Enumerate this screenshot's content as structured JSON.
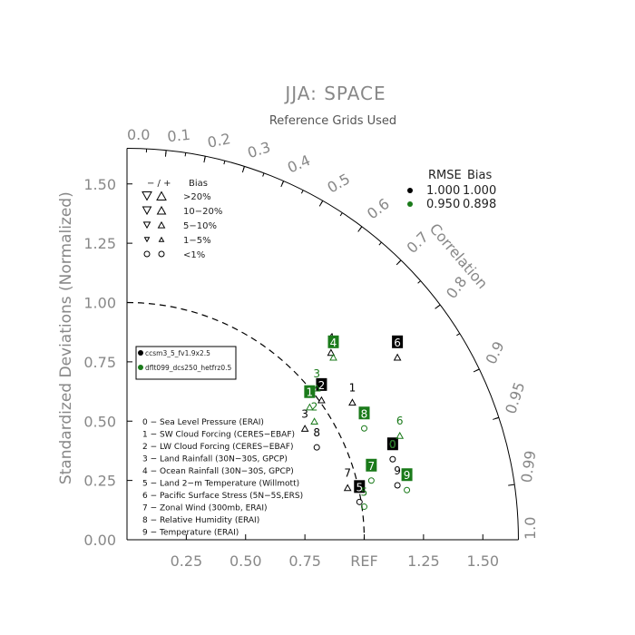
{
  "chart_data": {
    "type": "taylor",
    "title": "JJA: SPACE",
    "subtitle": "Reference Grids Used",
    "ylabel": "Standardized Deviations (Normalized)",
    "correlation_label": "Correlation",
    "x_ticks": [
      "0.25",
      "0.50",
      "0.75",
      "REF",
      "1.25",
      "1.50"
    ],
    "x_tick_values": [
      0.25,
      0.5,
      0.75,
      1.0,
      1.25,
      1.5
    ],
    "y_ticks": [
      "0.00",
      "0.25",
      "0.50",
      "0.75",
      "1.00",
      "1.25",
      "1.50"
    ],
    "y_tick_values": [
      0,
      0.25,
      0.5,
      0.75,
      1.0,
      1.25,
      1.5
    ],
    "correlation_ticks": [
      "0.0",
      "0.1",
      "0.2",
      "0.3",
      "0.4",
      "0.5",
      "0.6",
      "0.7",
      "0.8",
      "0.9",
      "0.95",
      "0.99",
      "1.0"
    ],
    "correlation_values": [
      0.0,
      0.1,
      0.2,
      0.3,
      0.4,
      0.5,
      0.6,
      0.7,
      0.8,
      0.9,
      0.95,
      0.99,
      1.0
    ],
    "max_std": 1.65,
    "ref_arc": 1.0,
    "bias_legend": {
      "header_sym": "−  /  +",
      "header": "Bias",
      "rows": [
        "&gt;20%",
        "10−20%",
        "5−10%",
        "1−5%",
        "&lt;1%"
      ]
    },
    "rmse_legend": {
      "header_rmse": "RMSE",
      "header_bias": "Bias",
      "rows": [
        {
          "color": "#000000",
          "rmse": "1.000",
          "bias": "1.000"
        },
        {
          "color": "#1a7a1a",
          "rmse": "0.950",
          "bias": "0.898"
        }
      ]
    },
    "series": [
      {
        "name": "ccsm3_5_fv1.9x2.5",
        "color": "#000000",
        "label_fill": "#000000",
        "label_color": "#ffffff"
      },
      {
        "name": "dflt099_dcs250_hetfrz0.5",
        "color": "#1a7a1a",
        "label_fill": "#1a7a1a",
        "label_color": "#ffffff"
      }
    ],
    "variables": [
      "0 − Sea Level Pressure (ERAI)",
      "1 − SW Cloud Forcing (CERES−EBAF)",
      "2 − LW Cloud Forcing (CERES−EBAF)",
      "3 − Land Rainfall (30N−30S, GPCP)",
      "4 − Ocean Rainfall (30N−30S, GPCP)",
      "5 − Land 2−m Temperature (Willmott)",
      "6 − Pacific Surface Stress (5N−5S,ERS)",
      "7 − Zonal Wind (300mb, ERAI)",
      "8 − Relative Humidity (ERAI)",
      "9 − Temperature (ERAI)"
    ],
    "points": [
      {
        "series": 0,
        "label": "0",
        "x": 1.12,
        "y": 0.37,
        "boxed": true,
        "bias_sym": "circle"
      },
      {
        "series": 0,
        "label": "1",
        "x": 0.95,
        "y": 0.61,
        "boxed": false,
        "bias_sym": "up"
      },
      {
        "series": 0,
        "label": "2",
        "x": 0.82,
        "y": 0.62,
        "boxed": true,
        "bias_sym": "up"
      },
      {
        "series": 0,
        "label": "3",
        "x": 0.75,
        "y": 0.5,
        "boxed": false,
        "bias_sym": "up"
      },
      {
        "series": 0,
        "label": "4",
        "x": 0.86,
        "y": 0.82,
        "boxed": false,
        "bias_sym": "up"
      },
      {
        "series": 0,
        "label": "5",
        "x": 0.98,
        "y": 0.19,
        "boxed": true,
        "bias_sym": "circle"
      },
      {
        "series": 0,
        "label": "6",
        "x": 1.14,
        "y": 0.8,
        "boxed": true,
        "bias_sym": "up"
      },
      {
        "series": 0,
        "label": "7",
        "x": 0.93,
        "y": 0.25,
        "boxed": false,
        "bias_sym": "up"
      },
      {
        "series": 0,
        "label": "8",
        "x": 0.8,
        "y": 0.42,
        "boxed": false,
        "bias_sym": "circle"
      },
      {
        "series": 0,
        "label": "9",
        "x": 1.14,
        "y": 0.26,
        "boxed": false,
        "bias_sym": "circle"
      },
      {
        "series": 1,
        "label": "0",
        "x": 1.12,
        "y": 0.37,
        "boxed": false,
        "bias_sym": "none"
      },
      {
        "series": 1,
        "label": "1",
        "x": 0.77,
        "y": 0.59,
        "boxed": true,
        "bias_sym": "up"
      },
      {
        "series": 1,
        "label": "2",
        "x": 0.79,
        "y": 0.53,
        "boxed": false,
        "bias_sym": "up"
      },
      {
        "series": 1,
        "label": "3",
        "x": 0.8,
        "y": 0.67,
        "boxed": false,
        "bias_sym": "up"
      },
      {
        "series": 1,
        "label": "4",
        "x": 0.87,
        "y": 0.8,
        "boxed": true,
        "bias_sym": "up"
      },
      {
        "series": 1,
        "label": "5",
        "x": 1.0,
        "y": 0.17,
        "boxed": false,
        "bias_sym": "circle"
      },
      {
        "series": 1,
        "label": "6",
        "x": 1.15,
        "y": 0.47,
        "boxed": false,
        "bias_sym": "up"
      },
      {
        "series": 1,
        "label": "7",
        "x": 1.03,
        "y": 0.28,
        "boxed": true,
        "bias_sym": "circle"
      },
      {
        "series": 1,
        "label": "8",
        "x": 1.0,
        "y": 0.5,
        "boxed": true,
        "bias_sym": "circle"
      },
      {
        "series": 1,
        "label": "9",
        "x": 1.18,
        "y": 0.24,
        "boxed": true,
        "bias_sym": "circle"
      }
    ]
  }
}
